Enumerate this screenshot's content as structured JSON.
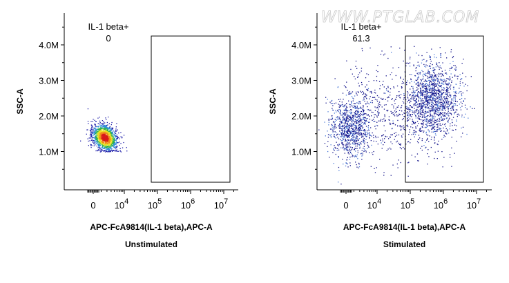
{
  "watermark": "WWW.PTGLAB.COM",
  "chart_data": [
    {
      "type": "scatter",
      "caption": "Unstimulated",
      "xlabel": "APC-FcA9814(IL-1 beta),APC-A",
      "ylabel": "SSC-A",
      "xscale": "biexponential",
      "x_ticks": [
        "0",
        "10^4",
        "10^5",
        "10^6",
        "10^7"
      ],
      "y_ticks": [
        "1.0M",
        "2.0M",
        "3.0M",
        "4.0M"
      ],
      "yticks_values": [
        1000000,
        2000000,
        3000000,
        4000000
      ],
      "gate": {
        "name": "IL-1 beta+",
        "value": "0",
        "x_range": [
          "10^5",
          "10^7"
        ],
        "y_range": [
          0,
          4250000
        ]
      },
      "population": {
        "x_center_log": 3.4,
        "y_center": 1400000,
        "density": "high, heatmap coloring"
      }
    },
    {
      "type": "scatter",
      "caption": "Stimulated",
      "xlabel": "APC-FcA9814(IL-1 beta),APC-A",
      "ylabel": "SSC-A",
      "xscale": "biexponential",
      "x_ticks": [
        "0",
        "10^4",
        "10^5",
        "10^6",
        "10^7"
      ],
      "y_ticks": [
        "1.0M",
        "2.0M",
        "3.0M",
        "4.0M"
      ],
      "yticks_values": [
        1000000,
        2000000,
        3000000,
        4000000
      ],
      "gate": {
        "name": "IL-1 beta+",
        "value": "61.3",
        "x_range": [
          "10^5",
          "10^7"
        ],
        "y_range": [
          0,
          4250000
        ]
      },
      "population": {
        "clusters": [
          {
            "x_center_log": 3.2,
            "y_center": 1700000
          },
          {
            "x_center_log": 5.7,
            "y_center": 2500000
          }
        ]
      }
    }
  ]
}
